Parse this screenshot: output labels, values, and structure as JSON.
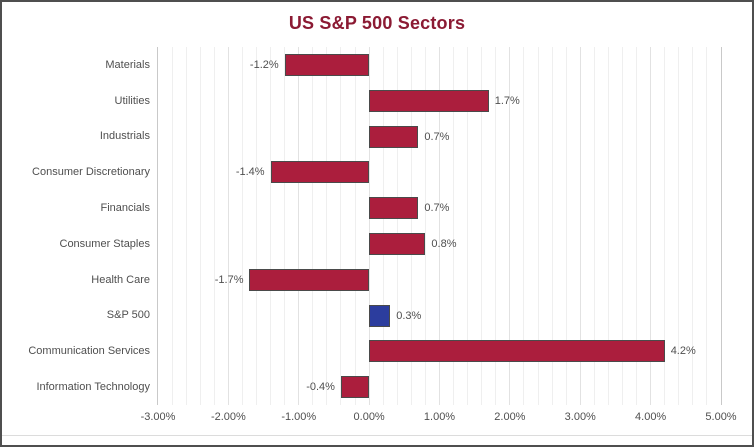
{
  "chart_data": {
    "type": "bar",
    "orientation": "horizontal",
    "title": "US S&P 500 Sectors",
    "categories": [
      "Materials",
      "Utilities",
      "Industrials",
      "Consumer Discretionary",
      "Financials",
      "Consumer Staples",
      "Health Care",
      "S&P 500",
      "Communication Services",
      "Information Technology"
    ],
    "values": [
      -1.2,
      1.7,
      0.7,
      -1.4,
      0.7,
      0.8,
      -1.7,
      0.3,
      4.2,
      -0.4
    ],
    "data_labels": [
      "-1.2%",
      "1.7%",
      "0.7%",
      "-1.4%",
      "0.7%",
      "0.8%",
      "-1.7%",
      "0.3%",
      "4.2%",
      "-0.4%"
    ],
    "highlight_index": 7,
    "xlabel": "",
    "ylabel": "",
    "xlim": [
      -3,
      5
    ],
    "x_major_step": 1.0,
    "x_minor_step": 0.2,
    "x_tick_labels": [
      "-3.00%",
      "-2.00%",
      "-1.00%",
      "0.00%",
      "1.00%",
      "2.00%",
      "3.00%",
      "4.00%",
      "5.00%"
    ],
    "legend": "none",
    "grid": "vertical",
    "colors": {
      "bar": "#AB1E3D",
      "highlight_bar": "#2C3D9E",
      "bar_border": "#4a4a4a",
      "title": "#8B1A33",
      "axis_text": "#4f4f4f",
      "gridline_minor": "#efefef",
      "gridline_major": "#e2e2e2",
      "plot_border": "#c9c9c9",
      "frame_border": "#4f4f4f"
    }
  }
}
